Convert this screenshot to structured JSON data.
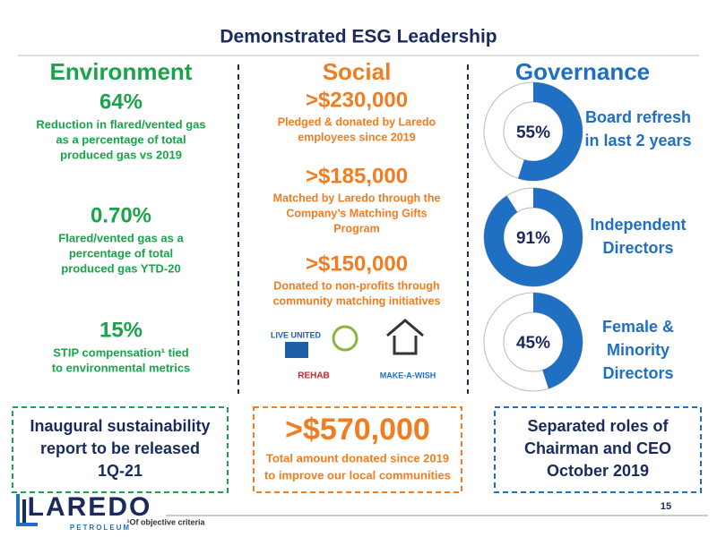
{
  "title": "Demonstrated ESG Leadership",
  "environment": {
    "heading": "Environment",
    "items": [
      {
        "figure": "64%",
        "lines": [
          "Reduction in flared/vented gas",
          "as a percentage of total",
          "produced gas vs 2019"
        ]
      },
      {
        "figure": "0.70%",
        "lines": [
          "Flared/vented gas as a",
          "percentage of total",
          "produced gas YTD-20"
        ]
      },
      {
        "figure": "15%",
        "lines": [
          "STIP compensation¹ tied",
          "to environmental metrics"
        ]
      }
    ],
    "box": [
      "Inaugural sustainability",
      "report to be released",
      "1Q-21"
    ]
  },
  "social": {
    "heading": "Social",
    "items": [
      {
        "figure": ">$230,000",
        "lines": [
          "Pledged & donated by Laredo",
          "employees since 2019"
        ]
      },
      {
        "figure": ">$185,000",
        "lines": [
          "Matched by Laredo through the",
          "Company’s Matching Gifts",
          "Program"
        ]
      },
      {
        "figure": ">$150,000",
        "lines": [
          "Donated to non-profits through",
          "community matching initiatives"
        ]
      }
    ],
    "logos": [
      "LIVE UNITED",
      "REHAB",
      "MAKE-A-WISH"
    ],
    "box": {
      "figure": ">$570,000",
      "lines": [
        "Total amount donated since 2019",
        "to improve our local communities"
      ]
    }
  },
  "governance": {
    "heading": "Governance",
    "items": [
      {
        "percent": {
          "value": 55,
          "label": "55%"
        },
        "lines": [
          "Board refresh",
          "in last 2 years"
        ]
      },
      {
        "percent": {
          "value": 91,
          "label": "91%"
        },
        "lines": [
          "Independent",
          "Directors"
        ]
      },
      {
        "percent": {
          "value": 45,
          "label": "45%"
        },
        "lines": [
          "Female &",
          "Minority",
          "Directors"
        ]
      }
    ],
    "box": [
      "Separated roles of",
      "Chairman and CEO",
      "October 2019"
    ]
  },
  "footer": {
    "logo": "LAREDO",
    "logo_sub": "PETROLEUM",
    "footnote": "¹Of objective criteria",
    "page": "15"
  }
}
